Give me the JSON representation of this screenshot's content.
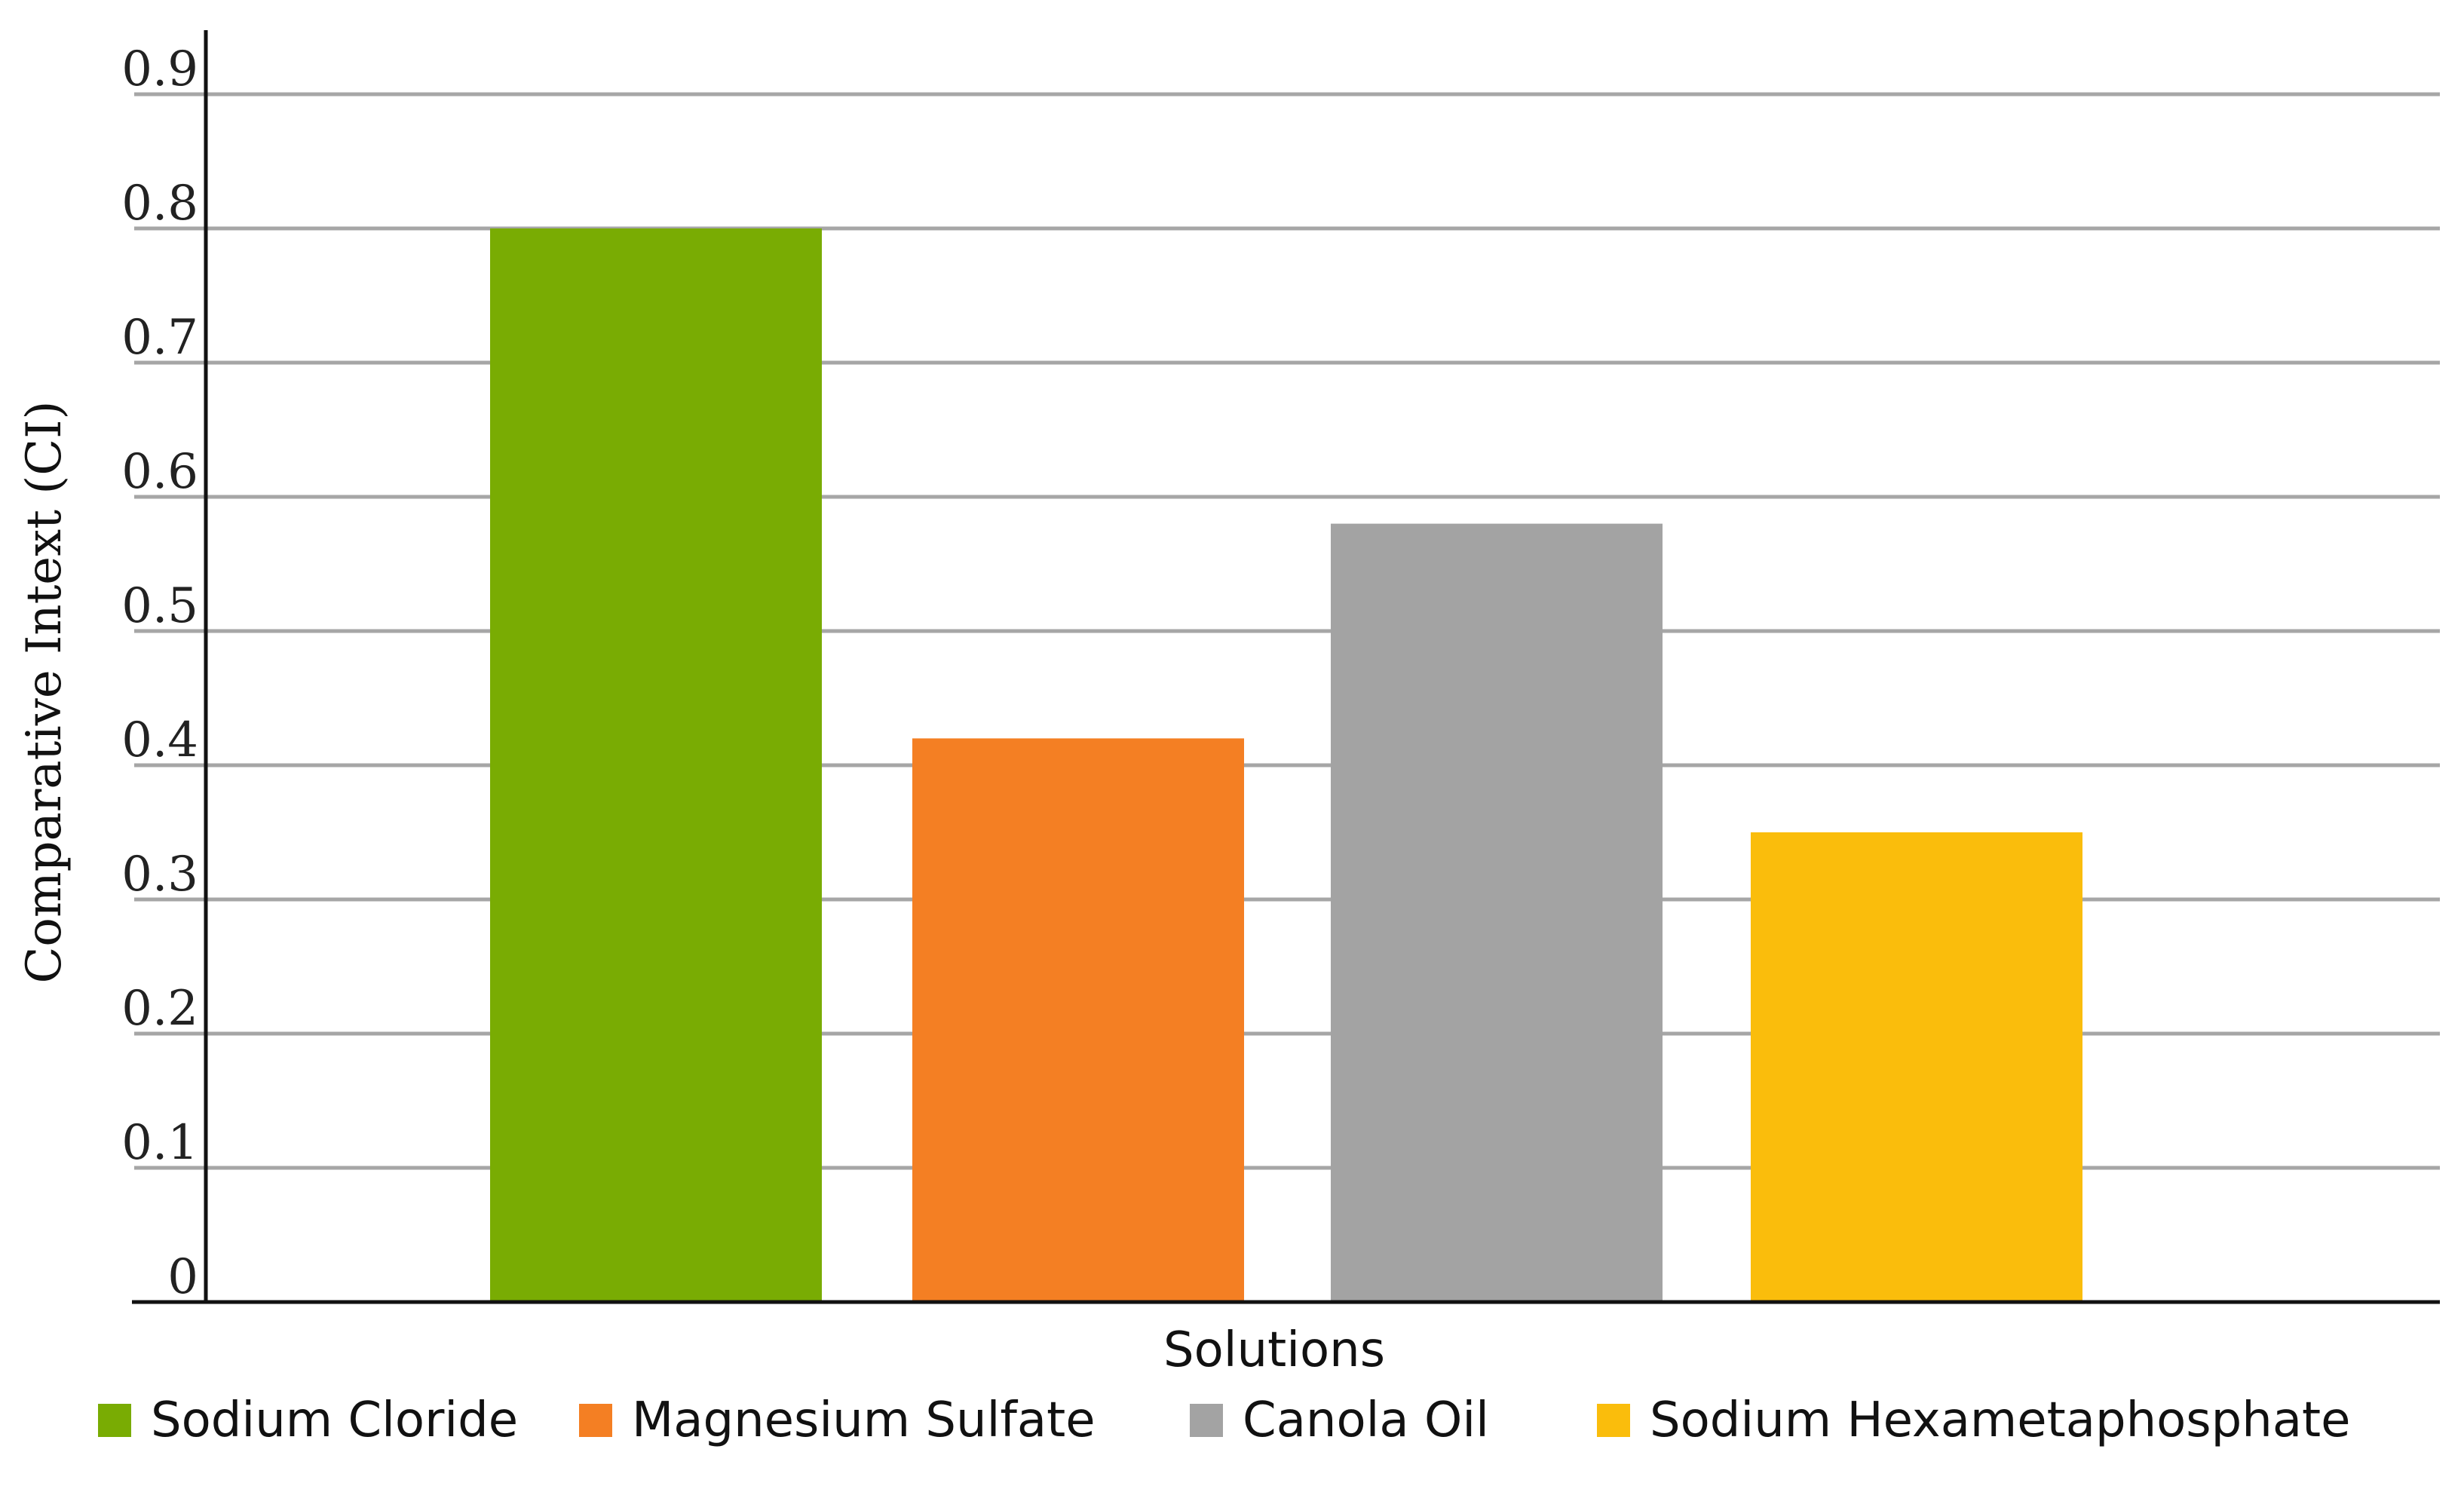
{
  "chart_data": {
    "type": "bar",
    "categories": [
      "Sodium Cloride",
      "Magnesium Sulfate",
      "Canola Oil",
      "Sodium Hexametaphosphate"
    ],
    "values": [
      0.8,
      0.42,
      0.58,
      0.35
    ],
    "colors": [
      "#79ac03",
      "#f47f23",
      "#a3a3a3",
      "#fabd0c"
    ],
    "xlabel": "Solutions",
    "ylabel": "Comparative Intext (CI)",
    "ylim": [
      0,
      0.9
    ],
    "yticks": [
      "0",
      "0.1",
      "0.2",
      "0.3",
      "0.4",
      "0.5",
      "0.6",
      "0.7",
      "0.8",
      "0.9"
    ],
    "grid": true,
    "legend": {
      "placement": "bottom",
      "entries": [
        "Sodium Cloride",
        "Magnesium Sulfate",
        "Canola Oil",
        "Sodium Hexametaphosphate"
      ]
    }
  }
}
